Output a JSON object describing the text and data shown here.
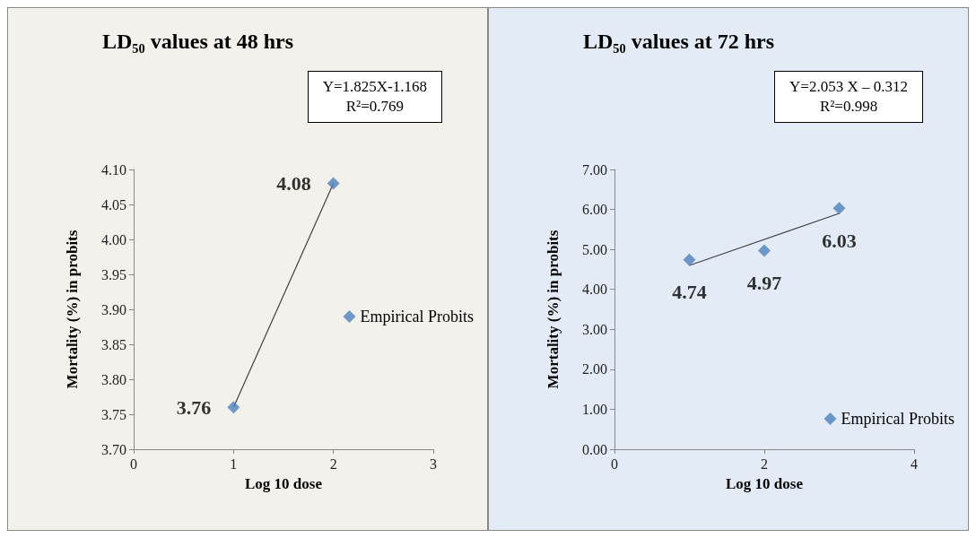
{
  "chart_data": [
    {
      "type": "scatter",
      "title": "LD₅₀ values at 48 hrs",
      "xlabel": "Log 10 dose",
      "ylabel": "Mortality (%) in probits",
      "annotations": [
        "Y=1.825X-1.168",
        "R²=0.769"
      ],
      "xlim": [
        0,
        3
      ],
      "xticks": [
        0,
        1,
        2,
        3
      ],
      "ylim": [
        3.7,
        4.1
      ],
      "yticks": [
        {
          "value": 3.7,
          "label": "3.70"
        },
        {
          "value": 3.75,
          "label": "3.75"
        },
        {
          "value": 3.8,
          "label": "3.80"
        },
        {
          "value": 3.85,
          "label": "3.85"
        },
        {
          "value": 3.9,
          "label": "3.90"
        },
        {
          "value": 3.95,
          "label": "3.95"
        },
        {
          "value": 4.0,
          "label": "4.00"
        },
        {
          "value": 4.05,
          "label": "4.05"
        },
        {
          "value": 4.1,
          "label": "4.10"
        }
      ],
      "grid": false,
      "legend": "right",
      "series": [
        {
          "name": "Empirical Probits",
          "marker": "diamond",
          "color": "#4f81bd",
          "x": [
            1,
            2
          ],
          "values": [
            3.76,
            4.08
          ],
          "value_labels": [
            "3.76",
            "4.08"
          ]
        },
        {
          "type": "line",
          "marker": "none",
          "color": "#404040",
          "x": [
            1,
            2
          ],
          "values": [
            3.76,
            4.08
          ]
        }
      ]
    },
    {
      "type": "scatter",
      "title": "LD₅₀ values at 72 hrs",
      "xlabel": "Log 10 dose",
      "ylabel": "Mortality (%) in probits",
      "annotations": [
        "Y=2.053 X – 0.312",
        "R²=0.998"
      ],
      "xlim": [
        0,
        4
      ],
      "xticks": [
        0,
        2,
        4
      ],
      "ylim": [
        0,
        7
      ],
      "yticks": [
        {
          "value": 0,
          "label": "0.00"
        },
        {
          "value": 1,
          "label": "1.00"
        },
        {
          "value": 2,
          "label": "2.00"
        },
        {
          "value": 3,
          "label": "3.00"
        },
        {
          "value": 4,
          "label": "4.00"
        },
        {
          "value": 5,
          "label": "5.00"
        },
        {
          "value": 6,
          "label": "6.00"
        },
        {
          "value": 7,
          "label": "7.00"
        }
      ],
      "grid": false,
      "legend": "bottom right",
      "series": [
        {
          "name": "Empirical Probits",
          "marker": "diamond",
          "color": "#4f81bd",
          "x": [
            1,
            2,
            3
          ],
          "values": [
            4.74,
            4.97,
            6.03
          ],
          "value_labels": [
            "4.74",
            "4.97",
            "6.03"
          ]
        },
        {
          "type": "line",
          "marker": "none",
          "color": "#404040",
          "x": [
            1,
            3
          ],
          "values": [
            4.6,
            5.9
          ]
        }
      ]
    }
  ]
}
